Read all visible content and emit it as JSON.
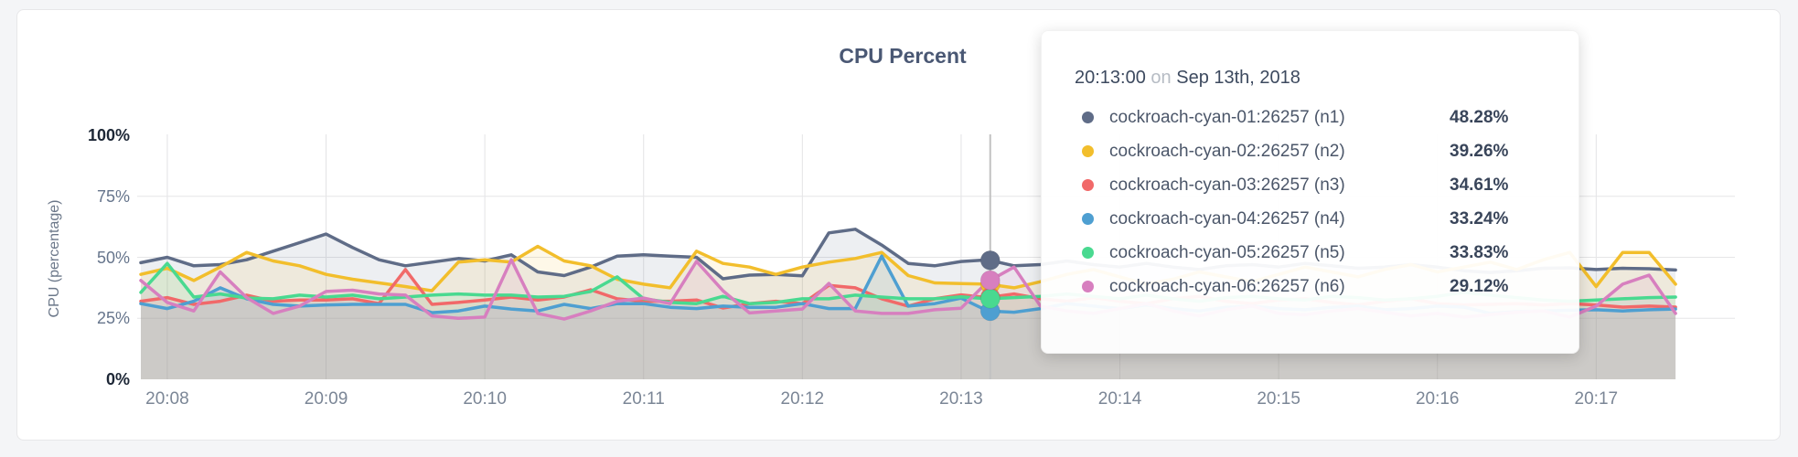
{
  "page": {
    "background_color": "#f4f5f7",
    "card_background": "#ffffff"
  },
  "chart": {
    "title": "CPU Percent",
    "title_color": "#4a5874",
    "y_axis": {
      "title": "CPU (percentage)",
      "ticks": [
        "0%",
        "25%",
        "50%",
        "75%",
        "100%"
      ]
    },
    "x_axis": {
      "ticks": [
        "20:08",
        "20:09",
        "20:10",
        "20:11",
        "20:12",
        "20:13",
        "20:14",
        "20:15",
        "20:16",
        "20:17"
      ]
    }
  },
  "tooltip": {
    "time": "20:13:00",
    "preposition": "on",
    "date": "Sep 13th, 2018",
    "rows": [
      {
        "label": "cockroach-cyan-01:26257 (n1)",
        "value": "48.28%",
        "color": "#5F6C87"
      },
      {
        "label": "cockroach-cyan-02:26257 (n2)",
        "value": "39.26%",
        "color": "#F2BE2C"
      },
      {
        "label": "cockroach-cyan-03:26257 (n3)",
        "value": "34.61%",
        "color": "#F16969"
      },
      {
        "label": "cockroach-cyan-04:26257 (n4)",
        "value": "33.24%",
        "color": "#4E9FD1"
      },
      {
        "label": "cockroach-cyan-05:26257 (n5)",
        "value": "33.83%",
        "color": "#49D990"
      },
      {
        "label": "cockroach-cyan-06:26257 (n6)",
        "value": "29.12%",
        "color": "#D77FBF"
      }
    ]
  },
  "chart_data": {
    "type": "area",
    "title": "CPU Percent",
    "ylabel": "CPU (percentage)",
    "ylim": [
      0,
      100
    ],
    "y_ticks_percent": [
      0,
      25,
      50,
      75,
      100
    ],
    "x_start": "20:07:50",
    "x_end": "20:17:30",
    "x_interval_sec": 10,
    "x_tick_labels": [
      "20:08",
      "20:09",
      "20:10",
      "20:11",
      "20:12",
      "20:13",
      "20:14",
      "20:15",
      "20:16",
      "20:17"
    ],
    "grid": true,
    "legend_position": "none",
    "hover": {
      "time": "20:13:00",
      "date": "Sep 13th, 2018"
    },
    "series": [
      {
        "name": "cockroach-cyan-01:26257 (n1)",
        "node": "n1",
        "color": "#5F6C87",
        "values": [
          47.8,
          50,
          46.5,
          47,
          49,
          52.5,
          56,
          59.5,
          54,
          49,
          46.5,
          48,
          49.5,
          48.5,
          51,
          44,
          42.5,
          46,
          50.5,
          51,
          50.5,
          50,
          41.2,
          42.7,
          43,
          42.4,
          60,
          61.5,
          55,
          47.5,
          46.5,
          48.28,
          49,
          46.5,
          47,
          48.5,
          47,
          46,
          47.5,
          46,
          45,
          46.5,
          47,
          46,
          47.5,
          46.5,
          45.5,
          46,
          47,
          46,
          44.5,
          43.8,
          44.5,
          45.5,
          45.7,
          45,
          45.5,
          45.3,
          44.8
        ]
      },
      {
        "name": "cockroach-cyan-02:26257 (n2)",
        "node": "n2",
        "color": "#F2BE2C",
        "values": [
          43,
          45.5,
          40.5,
          46,
          52,
          48.5,
          46.5,
          43,
          41,
          39.5,
          38,
          36.3,
          48,
          49,
          48,
          54.5,
          48.5,
          46.5,
          41,
          39,
          37.5,
          52.5,
          47.5,
          46,
          43,
          46,
          48,
          49.5,
          52,
          42.5,
          39.5,
          39.26,
          39,
          37.5,
          40,
          43,
          45,
          42,
          39,
          41,
          44,
          42,
          40,
          43,
          46,
          44,
          42,
          45,
          47,
          44,
          46,
          48,
          45,
          49,
          52,
          38,
          52,
          52,
          39
        ]
      },
      {
        "name": "cockroach-cyan-03:26257 (n3)",
        "node": "n3",
        "color": "#F16969",
        "values": [
          32,
          33.5,
          30.7,
          32,
          34.5,
          32,
          32.5,
          32.5,
          33,
          31,
          45,
          30.7,
          31.5,
          32.5,
          33.7,
          32.5,
          33.7,
          36.7,
          33,
          32,
          32,
          32.5,
          29.2,
          31,
          32,
          31,
          38.5,
          37.5,
          33,
          30,
          33,
          34.61,
          33.5,
          35,
          33,
          32,
          33.5,
          32,
          31,
          33,
          34,
          32,
          31,
          32.5,
          33,
          31.5,
          30.5,
          32,
          33,
          31,
          30.5,
          30.7,
          31,
          30.5,
          31,
          30.5,
          29.6,
          30,
          29.6
        ]
      },
      {
        "name": "cockroach-cyan-04:26257 (n4)",
        "node": "n4",
        "color": "#4E9FD1",
        "values": [
          31,
          29,
          32,
          37.5,
          33,
          30.7,
          30,
          30.5,
          30.7,
          30.7,
          30.7,
          27.3,
          28,
          30,
          28.8,
          28,
          30.7,
          29,
          31,
          31,
          29.5,
          29,
          30,
          29.5,
          29.5,
          31,
          29,
          29,
          50.5,
          30,
          31,
          33.24,
          28,
          27.5,
          29,
          31,
          30,
          29,
          30.5,
          29,
          28,
          29.5,
          30,
          29,
          28.5,
          29.5,
          30,
          28.5,
          29,
          30,
          29.6,
          27,
          27.7,
          28,
          28.3,
          28.5,
          28,
          28.5,
          28.8
        ]
      },
      {
        "name": "cockroach-cyan-05:26257 (n5)",
        "node": "n5",
        "color": "#49D990",
        "values": [
          35.6,
          47.5,
          33.7,
          35,
          33.3,
          33,
          34.5,
          33.7,
          34.5,
          33,
          33.7,
          34.5,
          35,
          34.5,
          34.5,
          33.7,
          34,
          36,
          42,
          33,
          31.5,
          31,
          34,
          31,
          31.5,
          33,
          33,
          34.5,
          33.7,
          33,
          33,
          33.83,
          33,
          33.5,
          34,
          35,
          34,
          33,
          34.5,
          33,
          32,
          33.5,
          34,
          33,
          32.5,
          34,
          33.5,
          32.5,
          33,
          34,
          35.6,
          34.5,
          33.5,
          32.5,
          32,
          32.5,
          33,
          33.5,
          33.7
        ]
      },
      {
        "name": "cockroach-cyan-06:26257 (n6)",
        "node": "n6",
        "color": "#D77FBF",
        "values": [
          40.5,
          31.5,
          28,
          44,
          33.5,
          27,
          30,
          36,
          36.5,
          35,
          34.5,
          26,
          25,
          25.5,
          49,
          27,
          24.7,
          28,
          32,
          33.3,
          31,
          48.3,
          36.3,
          27.2,
          28,
          28.8,
          39.3,
          28,
          27,
          27,
          28.5,
          29.12,
          40,
          46,
          30,
          28,
          27,
          29,
          31,
          28,
          26,
          28.5,
          30,
          27,
          26.5,
          28,
          29,
          27.5,
          26,
          27,
          25.5,
          26.5,
          27.5,
          28,
          25.5,
          30,
          39,
          42.7,
          27
        ]
      }
    ]
  }
}
